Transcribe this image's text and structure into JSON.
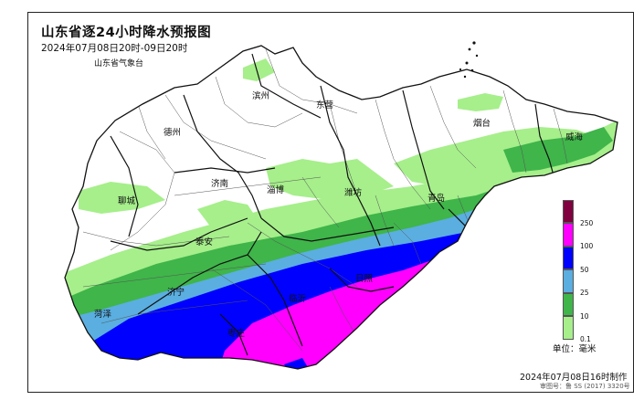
{
  "header": {
    "title": "山东省逐24小时降水预报图",
    "subtitle": "2024年07月08日20时-09日20时",
    "agency": "山东省气象台"
  },
  "cities": [
    {
      "name": "滨州"
    },
    {
      "name": "东营"
    },
    {
      "name": "德州"
    },
    {
      "name": "烟台"
    },
    {
      "name": "威海"
    },
    {
      "name": "济南"
    },
    {
      "name": "淄博"
    },
    {
      "name": "潍坊"
    },
    {
      "name": "聊城"
    },
    {
      "name": "青岛"
    },
    {
      "name": "泰安"
    },
    {
      "name": "济宁"
    },
    {
      "name": "日照"
    },
    {
      "name": "菏泽"
    },
    {
      "name": "临沂"
    },
    {
      "name": "枣庄"
    }
  ],
  "legend": {
    "ticks": [
      "250",
      "100",
      "50",
      "25",
      "10",
      "0.1"
    ],
    "unit": "单位：毫米",
    "swatches": [
      {
        "label": "100-250",
        "color": "#ff00ff"
      },
      {
        "label": "50-100",
        "color": "#0000ff"
      },
      {
        "label": "25-50",
        "color": "#5aaee0"
      },
      {
        "label": "10-25",
        "color": "#3fb54a"
      },
      {
        "label": "0.1-10",
        "color": "#a6ef8b"
      }
    ],
    "top_swatch_color": "#800040"
  },
  "footer": {
    "made": "2024年07月08日16时制作",
    "approval": "审图号：鲁 SS (2017) 3320号"
  },
  "colors": {
    "light_green": "#a6ef8b",
    "green": "#3fb54a",
    "sky_blue": "#5aaee0",
    "blue": "#0000ff",
    "magenta": "#ff00ff"
  }
}
